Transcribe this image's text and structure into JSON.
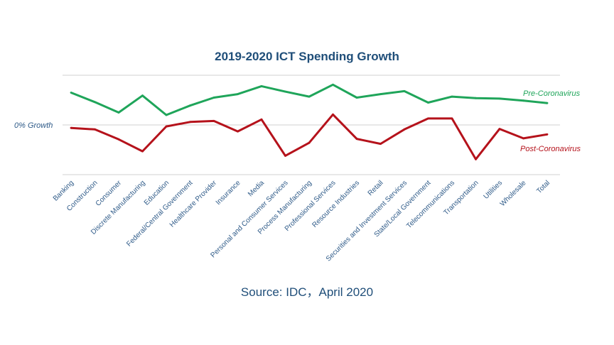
{
  "chart_data": {
    "type": "line",
    "title": "2019-2020 ICT Spending Growth",
    "zero_label": "0% Growth",
    "categories": [
      "Banking",
      "Construction",
      "Consumer",
      "Discrete Manufacturing",
      "Education",
      "Federal/Central Government",
      "Healthcare Provider",
      "Insurance",
      "Media",
      "Personal and Consumer Services",
      "Process Manufacturing",
      "Professional Services",
      "Resource Industries",
      "Retail",
      "Securities and Investment Services",
      "State/Local Government",
      "Telecommunications",
      "Transportation",
      "Utilities",
      "Wholesale",
      "Total"
    ],
    "series": [
      {
        "name": "Pre-Coronavirus",
        "color": "#1fa55a",
        "values": [
          6.5,
          4.6,
          2.5,
          5.9,
          2.0,
          3.9,
          5.5,
          6.2,
          7.8,
          6.7,
          5.7,
          8.1,
          5.5,
          6.2,
          6.8,
          4.5,
          5.7,
          5.4,
          5.3,
          4.9,
          4.4
        ]
      },
      {
        "name": "Post-Coronavirus",
        "color": "#b5121b",
        "values": [
          -0.6,
          -0.9,
          -2.9,
          -5.3,
          -0.3,
          0.6,
          0.8,
          -1.3,
          1.1,
          -6.2,
          -3.6,
          2.1,
          -2.8,
          -3.8,
          -0.9,
          1.3,
          1.3,
          -6.9,
          -0.8,
          -2.7,
          -1.9
        ]
      }
    ],
    "ylim": [
      -10,
      10
    ],
    "grid": true
  },
  "source": "Source: IDC，April 2020"
}
